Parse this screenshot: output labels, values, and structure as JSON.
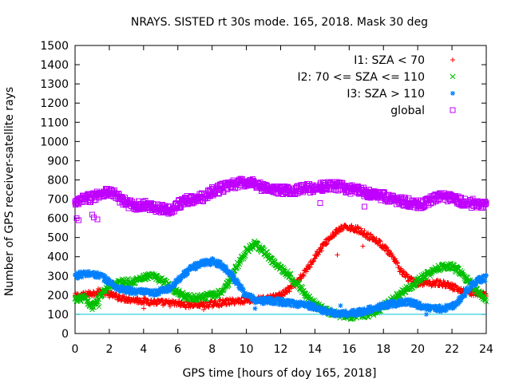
{
  "chart_data": {
    "type": "scatter",
    "title": "NRAYS. SISTED rt 30s mode. 165, 2018. Mask 30 deg",
    "xlabel": "GPS time [hours of doy 165, 2018]",
    "ylabel": "Number of GPS receiver-satellite rays",
    "xlim": [
      0,
      24
    ],
    "ylim": [
      0,
      1500
    ],
    "xticks": [
      0,
      2,
      4,
      6,
      8,
      10,
      12,
      14,
      16,
      18,
      20,
      22,
      24
    ],
    "yticks": [
      0,
      100,
      200,
      300,
      400,
      500,
      600,
      700,
      800,
      900,
      1000,
      1100,
      1200,
      1300,
      1400,
      1500
    ],
    "grid": false,
    "legend_position": "top-right",
    "reference_line": {
      "y": 100,
      "color": "#00c8d8"
    },
    "series": [
      {
        "name": "I1: SZA < 70",
        "marker": "plus",
        "color": "#ff0000",
        "x": [
          0,
          0.5,
          1,
          1.5,
          2,
          2.5,
          3,
          3.5,
          4,
          4.5,
          5,
          5.5,
          6,
          6.5,
          7,
          7.5,
          8,
          8.5,
          9,
          9.5,
          10,
          10.5,
          11,
          11.5,
          12,
          12.5,
          13,
          13.5,
          14,
          14.5,
          15,
          15.5,
          16,
          16.5,
          17,
          17.5,
          18,
          18.5,
          19,
          19.5,
          20,
          20.5,
          21,
          21.5,
          22,
          22.5,
          23,
          23.5,
          24
        ],
        "y": [
          195,
          200,
          210,
          220,
          205,
          190,
          180,
          175,
          170,
          165,
          160,
          158,
          155,
          150,
          150,
          150,
          155,
          160,
          165,
          170,
          175,
          175,
          180,
          185,
          200,
          230,
          270,
          330,
          400,
          460,
          510,
          545,
          555,
          540,
          515,
          490,
          455,
          400,
          330,
          280,
          265,
          260,
          265,
          260,
          245,
          225,
          215,
          210,
          205
        ]
      },
      {
        "name": "I2: 70 <= SZA <= 110",
        "marker": "cross",
        "color": "#00c000",
        "x": [
          0,
          0.5,
          1,
          1.5,
          2,
          2.5,
          3,
          3.5,
          4,
          4.5,
          5,
          5.5,
          6,
          6.5,
          7,
          7.5,
          8,
          8.5,
          9,
          9.5,
          10,
          10.5,
          11,
          11.5,
          12,
          12.5,
          13,
          13.5,
          14,
          14.5,
          15,
          15.5,
          16,
          16.5,
          17,
          17.5,
          18,
          18.5,
          19,
          19.5,
          20,
          20.5,
          21,
          21.5,
          22,
          22.5,
          23,
          23.5,
          24
        ],
        "y": [
          175,
          185,
          140,
          200,
          250,
          265,
          270,
          275,
          290,
          300,
          280,
          250,
          215,
          190,
          185,
          190,
          200,
          215,
          270,
          360,
          430,
          465,
          430,
          380,
          340,
          305,
          255,
          200,
          155,
          125,
          105,
          95,
          90,
          95,
          100,
          110,
          140,
          175,
          210,
          240,
          275,
          305,
          330,
          350,
          350,
          320,
          270,
          215,
          180
        ]
      },
      {
        "name": "I3: SZA > 110",
        "marker": "star",
        "color": "#0080ff",
        "x": [
          0,
          0.5,
          1,
          1.5,
          2,
          2.5,
          3,
          3.5,
          4,
          4.5,
          5,
          5.5,
          6,
          6.5,
          7,
          7.5,
          8,
          8.5,
          9,
          9.5,
          10,
          10.5,
          11,
          11.5,
          12,
          12.5,
          13,
          13.5,
          14,
          14.5,
          15,
          15.5,
          16,
          16.5,
          17,
          17.5,
          18,
          18.5,
          19,
          19.5,
          20,
          20.5,
          21,
          21.5,
          22,
          22.5,
          23,
          23.5,
          24
        ],
        "y": [
          300,
          310,
          310,
          300,
          270,
          235,
          225,
          220,
          215,
          210,
          220,
          235,
          280,
          320,
          350,
          370,
          375,
          360,
          320,
          260,
          200,
          175,
          170,
          170,
          165,
          160,
          155,
          150,
          135,
          120,
          110,
          100,
          105,
          110,
          120,
          130,
          145,
          155,
          160,
          165,
          150,
          135,
          130,
          130,
          140,
          180,
          240,
          275,
          290
        ]
      },
      {
        "name": "global",
        "marker": "square",
        "color": "#c000ff",
        "x": [
          0,
          0.5,
          1,
          1.5,
          2,
          2.5,
          3,
          3.5,
          4,
          4.5,
          5,
          5.5,
          6,
          6.5,
          7,
          7.5,
          8,
          8.5,
          9,
          9.5,
          10,
          10.5,
          11,
          11.5,
          12,
          12.5,
          13,
          13.5,
          14,
          14.5,
          15,
          15.5,
          16,
          16.5,
          17,
          17.5,
          18,
          18.5,
          19,
          19.5,
          20,
          20.5,
          21,
          21.5,
          22,
          22.5,
          23,
          23.5,
          24
        ],
        "y": [
          675,
          700,
          710,
          735,
          740,
          710,
          680,
          665,
          670,
          660,
          650,
          645,
          670,
          695,
          700,
          710,
          740,
          755,
          770,
          780,
          790,
          785,
          760,
          750,
          745,
          745,
          750,
          755,
          760,
          765,
          770,
          765,
          750,
          745,
          735,
          720,
          715,
          700,
          690,
          680,
          670,
          680,
          710,
          710,
          705,
          690,
          680,
          675,
          670
        ]
      }
    ],
    "outliers": {
      "I1: SZA < 70": [
        [
          1.0,
          150
        ],
        [
          1.3,
          170
        ],
        [
          4.0,
          130
        ],
        [
          7.5,
          125
        ],
        [
          15.3,
          410
        ],
        [
          16.8,
          455
        ]
      ],
      "I2: 70 <= SZA <= 110": [
        [
          1.0,
          125
        ],
        [
          1.4,
          140
        ]
      ],
      "I3: SZA > 110": [
        [
          10.5,
          130
        ],
        [
          15.5,
          145
        ],
        [
          20.5,
          100
        ]
      ],
      "global": [
        [
          0.1,
          600
        ],
        [
          0.2,
          590
        ],
        [
          1.0,
          620
        ],
        [
          1.1,
          605
        ],
        [
          1.3,
          595
        ],
        [
          14.3,
          680
        ],
        [
          16.9,
          660
        ]
      ]
    }
  }
}
